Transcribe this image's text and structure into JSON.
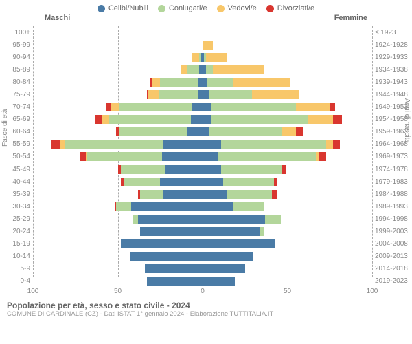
{
  "legend": [
    {
      "label": "Celibi/Nubili",
      "color": "#4a7ba6"
    },
    {
      "label": "Coniugati/e",
      "color": "#b3d69b"
    },
    {
      "label": "Vedovi/e",
      "color": "#f8c76a"
    },
    {
      "label": "Divorziati/e",
      "color": "#d9362f"
    }
  ],
  "columns": {
    "male": "Maschi",
    "female": "Femmine"
  },
  "axis_labels": {
    "left": "Fasce di età",
    "right": "Anni di nascita"
  },
  "x_ticks": [
    "100",
    "50",
    "0",
    "50",
    "100"
  ],
  "xlim": 100,
  "footer": {
    "title": "Popolazione per età, sesso e stato civile - 2024",
    "subtitle": "COMUNE DI CARDINALE (CZ) - Dati ISTAT 1° gennaio 2024 - Elaborazione TUTTITALIA.IT"
  },
  "colors": {
    "celibi": "#4a7ba6",
    "coniugati": "#b3d69b",
    "vedovi": "#f8c76a",
    "divorziati": "#d9362f",
    "grid": "#aaaaaa",
    "background": "#ffffff",
    "text": "#888888"
  },
  "rows": [
    {
      "age": "100+",
      "year": "≤ 1923",
      "m": {
        "c": 0,
        "con": 0,
        "v": 0,
        "d": 0
      },
      "f": {
        "c": 0,
        "con": 0,
        "v": 0,
        "d": 0
      }
    },
    {
      "age": "95-99",
      "year": "1924-1928",
      "m": {
        "c": 0,
        "con": 0,
        "v": 0,
        "d": 0
      },
      "f": {
        "c": 0,
        "con": 0,
        "v": 6,
        "d": 0
      }
    },
    {
      "age": "90-94",
      "year": "1929-1933",
      "m": {
        "c": 1,
        "con": 1,
        "v": 4,
        "d": 0
      },
      "f": {
        "c": 1,
        "con": 1,
        "v": 12,
        "d": 0
      }
    },
    {
      "age": "85-89",
      "year": "1934-1938",
      "m": {
        "c": 2,
        "con": 7,
        "v": 4,
        "d": 0
      },
      "f": {
        "c": 2,
        "con": 4,
        "v": 30,
        "d": 0
      }
    },
    {
      "age": "80-84",
      "year": "1939-1943",
      "m": {
        "c": 3,
        "con": 22,
        "v": 5,
        "d": 1
      },
      "f": {
        "c": 3,
        "con": 15,
        "v": 34,
        "d": 0
      }
    },
    {
      "age": "75-79",
      "year": "1944-1948",
      "m": {
        "c": 3,
        "con": 23,
        "v": 6,
        "d": 1
      },
      "f": {
        "c": 4,
        "con": 25,
        "v": 28,
        "d": 0
      }
    },
    {
      "age": "70-74",
      "year": "1949-1953",
      "m": {
        "c": 6,
        "con": 43,
        "v": 5,
        "d": 3
      },
      "f": {
        "c": 5,
        "con": 50,
        "v": 20,
        "d": 3
      }
    },
    {
      "age": "65-69",
      "year": "1954-1958",
      "m": {
        "c": 7,
        "con": 48,
        "v": 4,
        "d": 4
      },
      "f": {
        "c": 5,
        "con": 57,
        "v": 15,
        "d": 5
      }
    },
    {
      "age": "60-64",
      "year": "1959-1963",
      "m": {
        "c": 9,
        "con": 40,
        "v": 0,
        "d": 2
      },
      "f": {
        "c": 4,
        "con": 43,
        "v": 8,
        "d": 4
      }
    },
    {
      "age": "55-59",
      "year": "1964-1968",
      "m": {
        "c": 23,
        "con": 58,
        "v": 3,
        "d": 5
      },
      "f": {
        "c": 11,
        "con": 62,
        "v": 4,
        "d": 4
      }
    },
    {
      "age": "50-54",
      "year": "1969-1973",
      "m": {
        "c": 24,
        "con": 44,
        "v": 1,
        "d": 3
      },
      "f": {
        "c": 9,
        "con": 58,
        "v": 2,
        "d": 4
      }
    },
    {
      "age": "45-49",
      "year": "1974-1978",
      "m": {
        "c": 22,
        "con": 26,
        "v": 0,
        "d": 2
      },
      "f": {
        "c": 11,
        "con": 36,
        "v": 0,
        "d": 2
      }
    },
    {
      "age": "40-44",
      "year": "1979-1983",
      "m": {
        "c": 25,
        "con": 21,
        "v": 0,
        "d": 2
      },
      "f": {
        "c": 12,
        "con": 30,
        "v": 0,
        "d": 2
      }
    },
    {
      "age": "35-39",
      "year": "1984-1988",
      "m": {
        "c": 23,
        "con": 14,
        "v": 0,
        "d": 1
      },
      "f": {
        "c": 14,
        "con": 27,
        "v": 0,
        "d": 3
      }
    },
    {
      "age": "30-34",
      "year": "1989-1993",
      "m": {
        "c": 42,
        "con": 9,
        "v": 0,
        "d": 1
      },
      "f": {
        "c": 18,
        "con": 18,
        "v": 0,
        "d": 0
      }
    },
    {
      "age": "25-29",
      "year": "1994-1998",
      "m": {
        "c": 38,
        "con": 3,
        "v": 0,
        "d": 0
      },
      "f": {
        "c": 37,
        "con": 9,
        "v": 0,
        "d": 0
      }
    },
    {
      "age": "20-24",
      "year": "1999-2003",
      "m": {
        "c": 37,
        "con": 0,
        "v": 0,
        "d": 0
      },
      "f": {
        "c": 34,
        "con": 2,
        "v": 0,
        "d": 0
      }
    },
    {
      "age": "15-19",
      "year": "2004-2008",
      "m": {
        "c": 48,
        "con": 0,
        "v": 0,
        "d": 0
      },
      "f": {
        "c": 43,
        "con": 0,
        "v": 0,
        "d": 0
      }
    },
    {
      "age": "10-14",
      "year": "2009-2013",
      "m": {
        "c": 43,
        "con": 0,
        "v": 0,
        "d": 0
      },
      "f": {
        "c": 30,
        "con": 0,
        "v": 0,
        "d": 0
      }
    },
    {
      "age": "5-9",
      "year": "2014-2018",
      "m": {
        "c": 34,
        "con": 0,
        "v": 0,
        "d": 0
      },
      "f": {
        "c": 25,
        "con": 0,
        "v": 0,
        "d": 0
      }
    },
    {
      "age": "0-4",
      "year": "2019-2023",
      "m": {
        "c": 33,
        "con": 0,
        "v": 0,
        "d": 0
      },
      "f": {
        "c": 19,
        "con": 0,
        "v": 0,
        "d": 0
      }
    }
  ]
}
